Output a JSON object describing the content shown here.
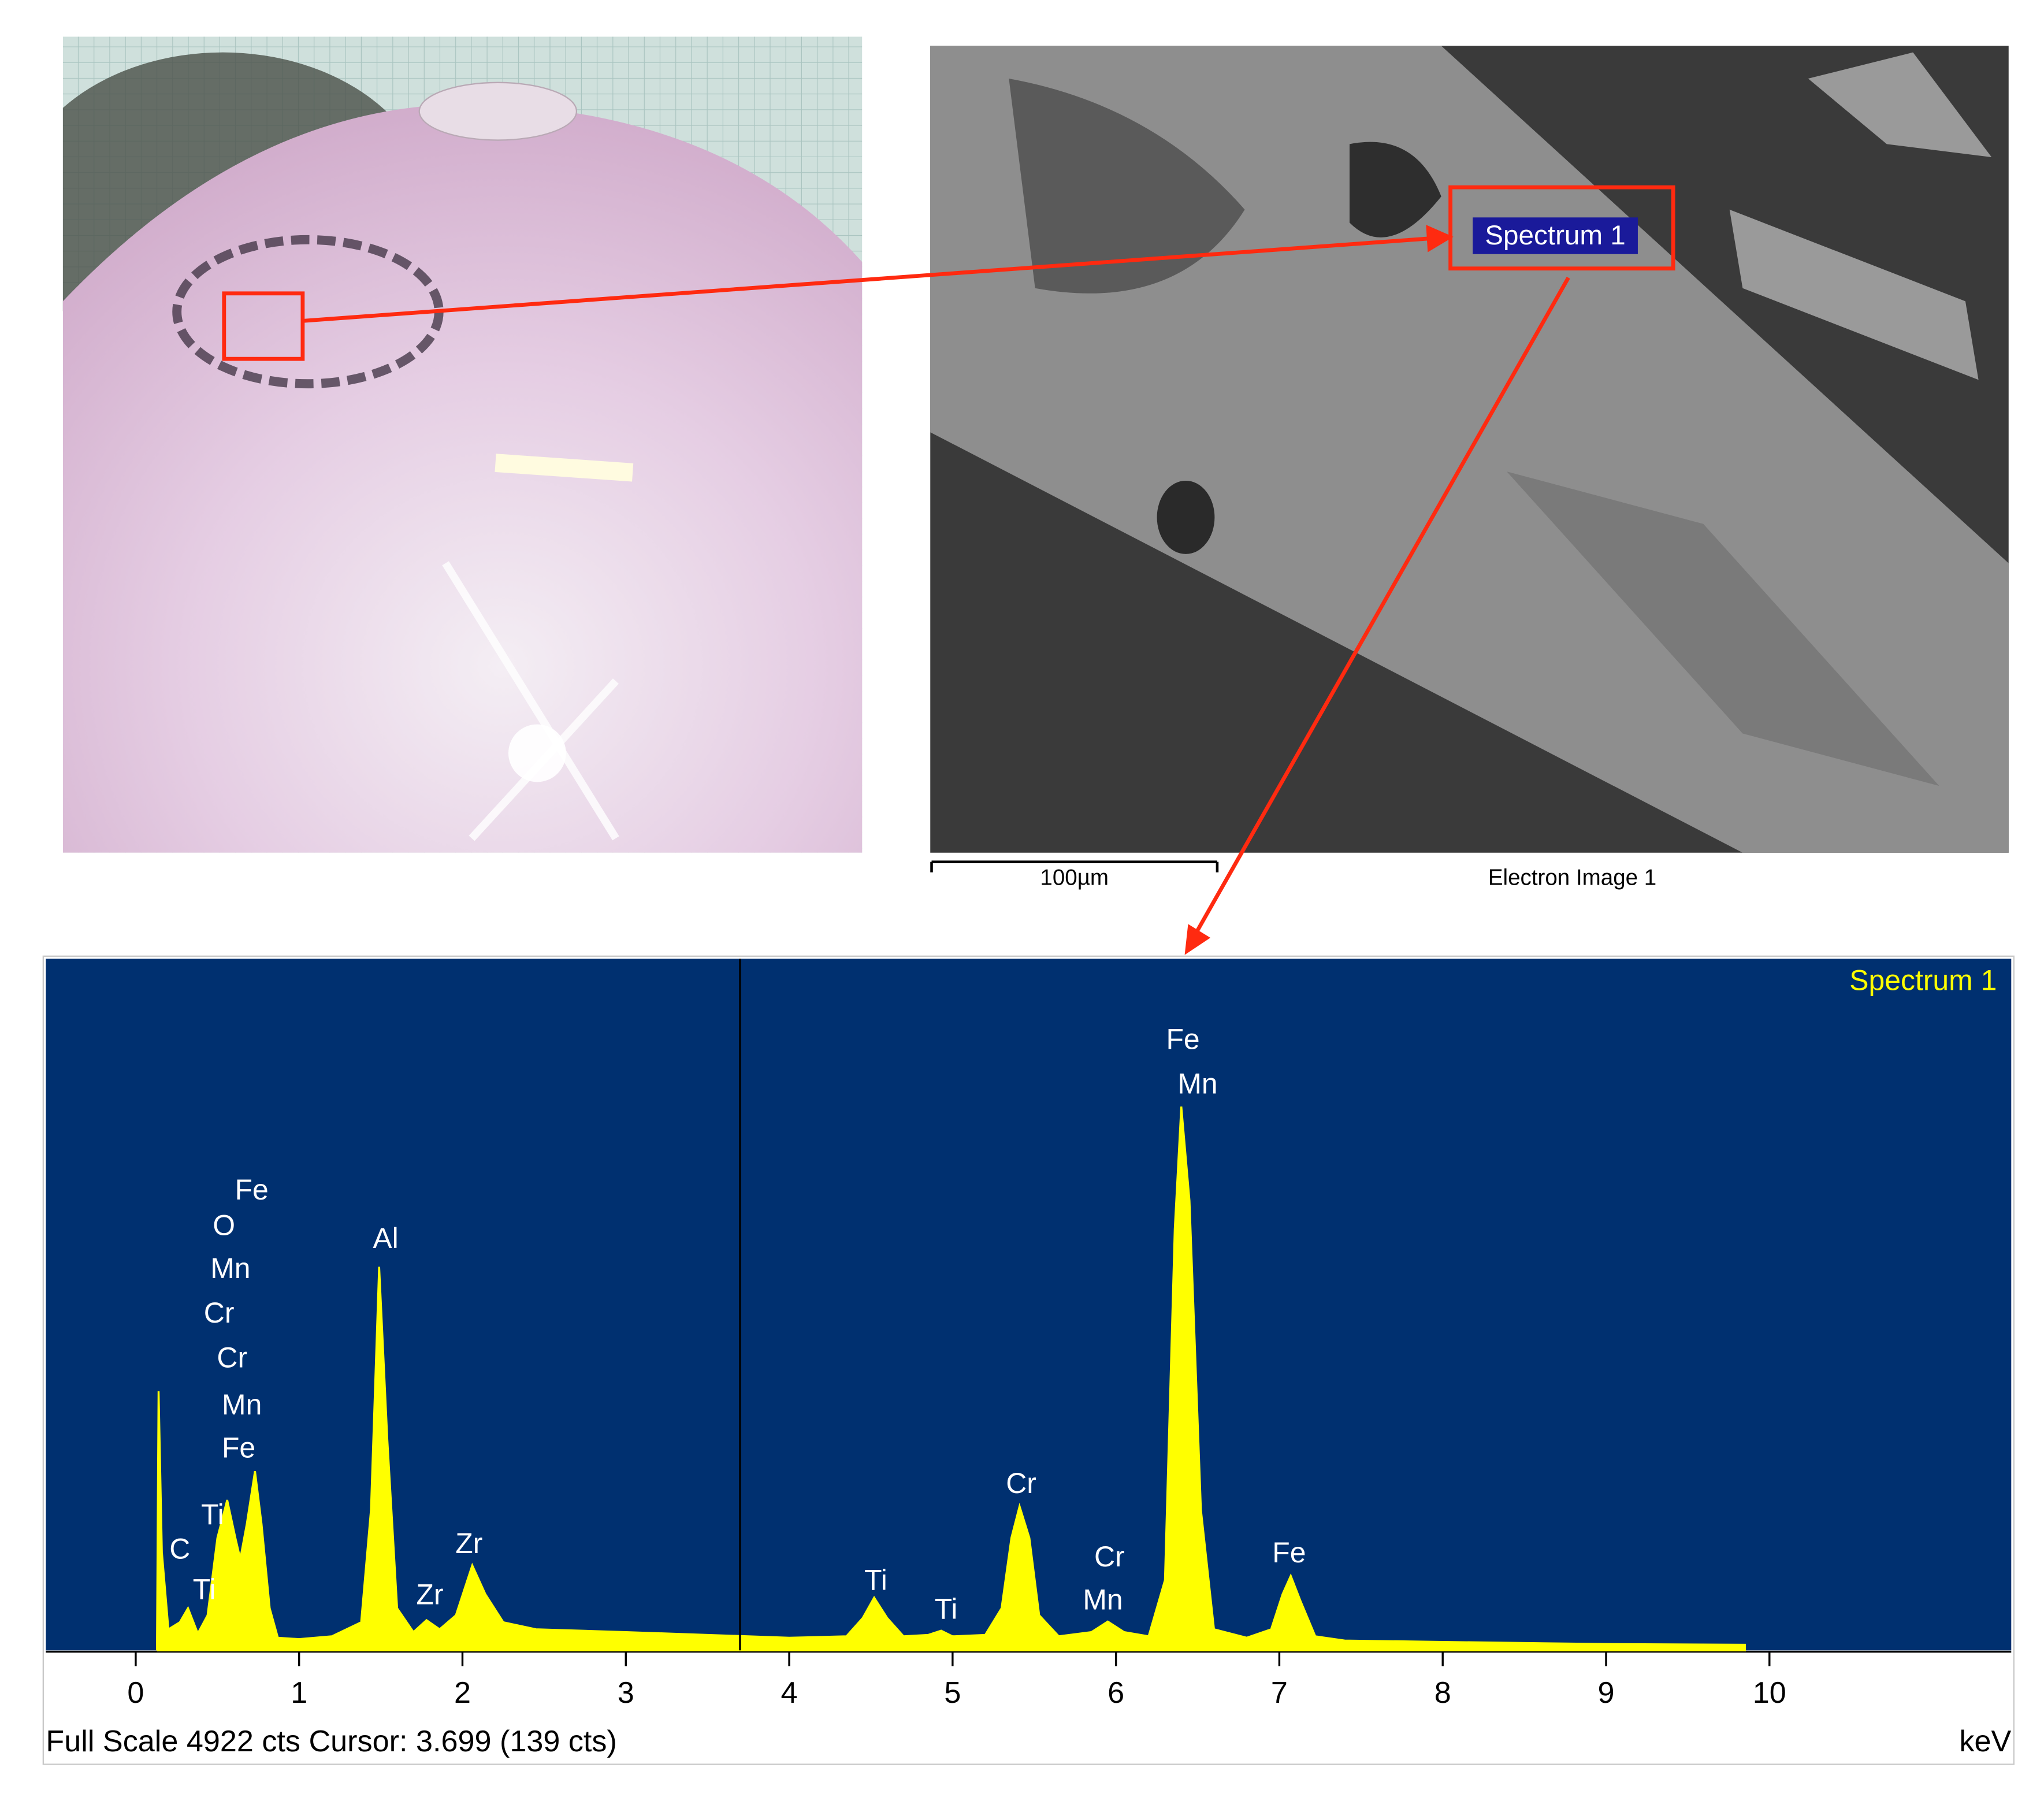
{
  "chart_data": {
    "type": "area",
    "title": "Spectrum 1",
    "x_label": "keV",
    "footer": "Full Scale 4922 cts Cursor: 3.699  (139 cts)",
    "color": "#ffff00",
    "background": "#003070",
    "x": [
      0.13,
      0.14,
      0.16,
      0.2,
      0.27,
      0.32,
      0.38,
      0.44,
      0.5,
      0.56,
      0.61,
      0.64,
      0.68,
      0.73,
      0.77,
      0.82,
      0.87,
      1.0,
      1.2,
      1.38,
      1.44,
      1.49,
      1.54,
      1.6,
      1.7,
      1.78,
      1.86,
      1.96,
      2.06,
      2.14,
      2.25,
      2.45,
      3.0,
      3.5,
      4.0,
      4.35,
      4.45,
      4.52,
      4.6,
      4.7,
      4.85,
      4.93,
      5.0,
      5.2,
      5.3,
      5.36,
      5.41,
      5.47,
      5.53,
      5.65,
      5.85,
      5.95,
      6.05,
      6.2,
      6.3,
      6.36,
      6.4,
      6.45,
      6.52,
      6.6,
      6.8,
      6.95,
      7.02,
      7.07,
      7.13,
      7.22,
      7.4,
      8.0,
      9.0,
      9.85
    ],
    "values": [
      0,
      1845,
      700,
      150,
      200,
      300,
      120,
      250,
      800,
      1070,
      800,
      650,
      900,
      1275,
      900,
      300,
      90,
      80,
      100,
      200,
      1000,
      2730,
      1500,
      300,
      130,
      215,
      150,
      250,
      605,
      400,
      200,
      150,
      130,
      110,
      90,
      100,
      230,
      375,
      230,
      100,
      110,
      140,
      100,
      110,
      300,
      800,
      1025,
      800,
      250,
      100,
      130,
      205,
      130,
      100,
      500,
      3000,
      3870,
      3200,
      1000,
      150,
      90,
      150,
      400,
      530,
      350,
      100,
      70,
      60,
      45,
      40
    ],
    "xlim": [
      -0.55,
      11.48
    ],
    "xticks": [
      0,
      1,
      2,
      3,
      4,
      5,
      6,
      7,
      8,
      9,
      10
    ],
    "ylim": [
      0,
      4922
    ],
    "cursor": 3.699,
    "annotations": [
      {
        "text": "Fe",
        "x": 0.71,
        "y": 3262
      },
      {
        "text": "O",
        "x": 0.54,
        "y": 3010
      },
      {
        "text": "Mn",
        "x": 0.58,
        "y": 2703
      },
      {
        "text": "Cr",
        "x": 0.51,
        "y": 2386
      },
      {
        "text": "Cr",
        "x": 0.59,
        "y": 2069
      },
      {
        "text": "Mn",
        "x": 0.65,
        "y": 1733
      },
      {
        "text": "Fe",
        "x": 0.63,
        "y": 1426
      },
      {
        "text": "Ti",
        "x": 0.47,
        "y": 951
      },
      {
        "text": "C",
        "x": 0.27,
        "y": 708
      },
      {
        "text": "Ti",
        "x": 0.42,
        "y": 419
      },
      {
        "text": "Al",
        "x": 1.53,
        "y": 2917
      },
      {
        "text": "Zr",
        "x": 1.8,
        "y": 382
      },
      {
        "text": "Zr",
        "x": 2.04,
        "y": 746
      },
      {
        "text": "Ti",
        "x": 4.53,
        "y": 485
      },
      {
        "text": "Ti",
        "x": 4.96,
        "y": 280
      },
      {
        "text": "Cr",
        "x": 5.42,
        "y": 1174
      },
      {
        "text": "Cr",
        "x": 5.96,
        "y": 652
      },
      {
        "text": "Mn",
        "x": 5.92,
        "y": 345
      },
      {
        "text": "Fe",
        "x": 6.41,
        "y": 4334
      },
      {
        "text": "Mn",
        "x": 6.5,
        "y": 4017
      },
      {
        "text": "Fe",
        "x": 7.06,
        "y": 680
      }
    ]
  },
  "sem_image": {
    "spectrum_label": "Spectrum 1",
    "scale_bar": "100µm",
    "caption": "Electron Image 1"
  }
}
